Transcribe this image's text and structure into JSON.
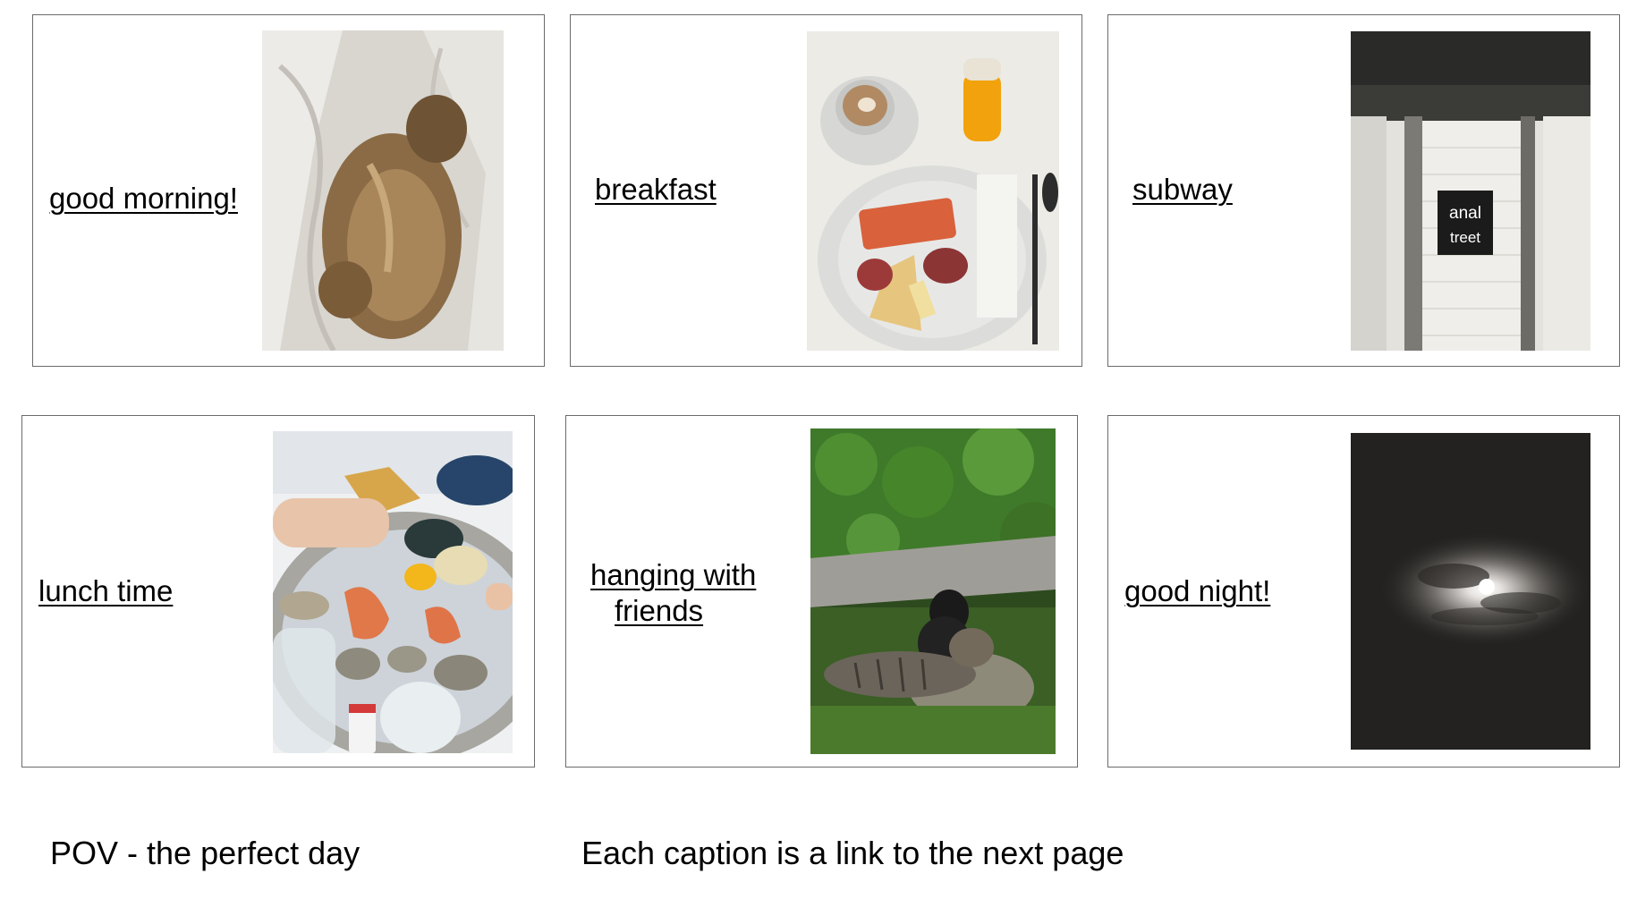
{
  "cards": [
    {
      "caption": "good morning!",
      "photo": "sleeping-dog-photo"
    },
    {
      "caption": "breakfast",
      "photo": "breakfast-plate-photo"
    },
    {
      "caption": "subway",
      "photo": "subway-station-photo",
      "sign_lines": [
        "anal",
        "treet"
      ]
    },
    {
      "caption": "lunch time",
      "photo": "seafood-lunch-photo"
    },
    {
      "caption_line1": "hanging with",
      "caption_line2": "friends",
      "photo": "cats-in-grass-photo"
    },
    {
      "caption": "good night!",
      "photo": "night-moon-photo"
    }
  ],
  "footer": {
    "title": "POV - the perfect day",
    "note": "Each caption is a link to the next page"
  }
}
